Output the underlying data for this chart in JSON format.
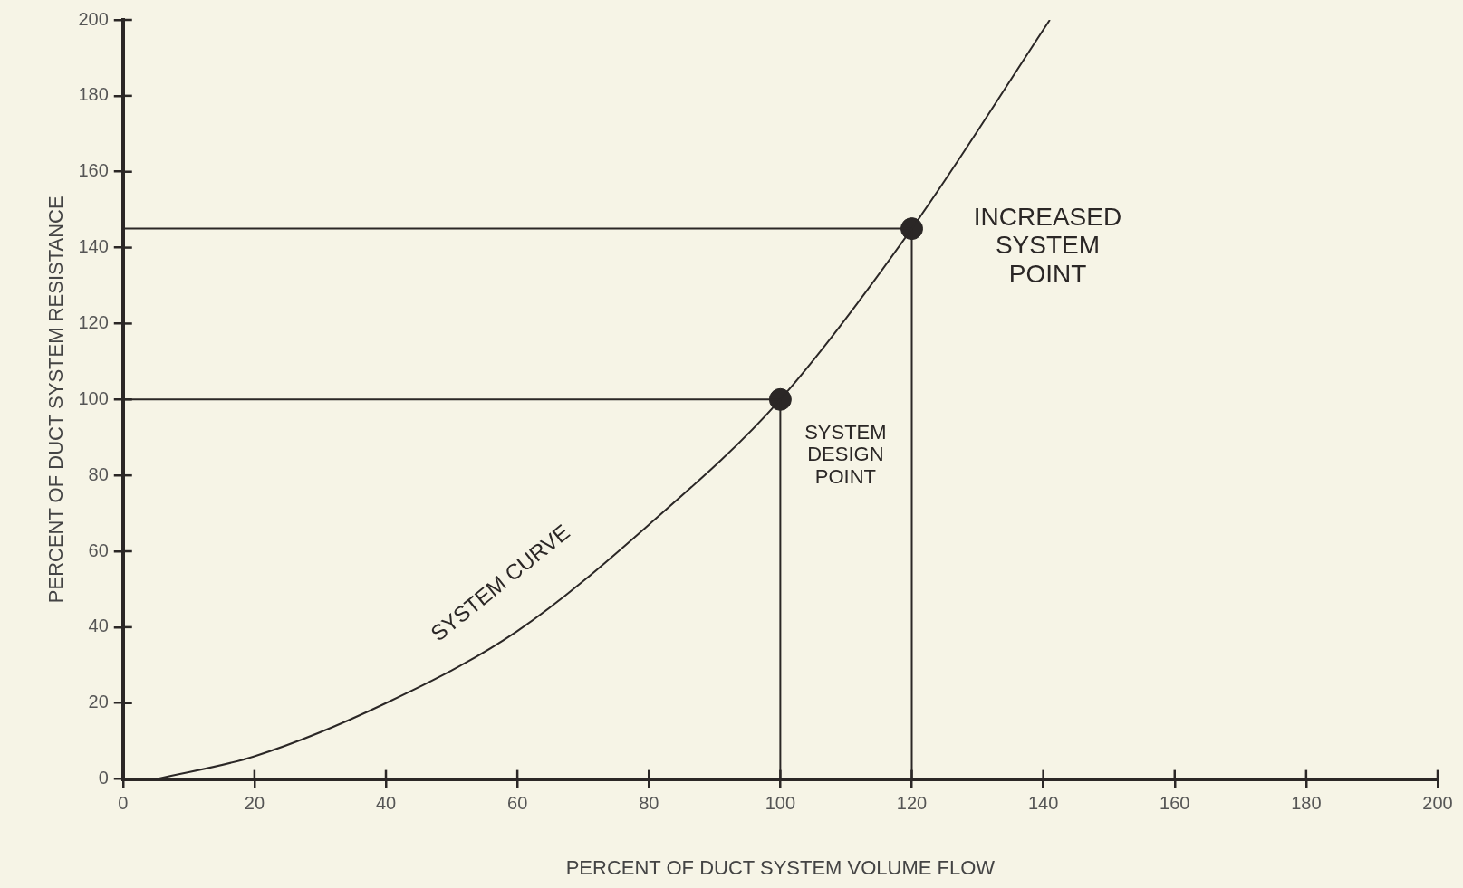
{
  "chart_data": {
    "type": "line",
    "xlabel": "PERCENT OF DUCT SYSTEM VOLUME FLOW",
    "ylabel": "PERCENT OF DUCT SYSTEM RESISTANCE",
    "xlim": [
      0,
      200
    ],
    "ylim": [
      0,
      200
    ],
    "xticks": [
      0,
      20,
      40,
      60,
      80,
      100,
      120,
      140,
      160,
      180,
      200
    ],
    "yticks": [
      0,
      20,
      40,
      60,
      80,
      100,
      120,
      140,
      160,
      180,
      200
    ],
    "grid": false,
    "legend": false,
    "marker": "none",
    "line_style": "solid",
    "series": [
      {
        "color": "#2b2726",
        "x": [
          5,
          20,
          40,
          60,
          80,
          100,
          120,
          141
        ],
        "values": [
          0,
          6,
          20,
          39,
          67,
          100,
          145,
          200
        ]
      },
      {
        "color": "#2b2726",
        "x": [
          0,
          100,
          100
        ],
        "values": [
          100,
          100,
          0
        ]
      },
      {
        "color": "#2b2726",
        "x": [
          0,
          120,
          120
        ],
        "values": [
          145,
          145,
          0
        ]
      },
      {
        "type": "scatter",
        "color": "#2b2726",
        "marker": "circle",
        "x": [
          100,
          120
        ],
        "values": [
          100,
          145
        ]
      }
    ],
    "annotations": [
      {
        "text": "SYSTEM CURVE",
        "x": 60,
        "y": 39
      },
      {
        "text": "SYSTEM\nDESIGN\nPOINT",
        "x": 100,
        "y": 100
      },
      {
        "text": "INCREASED\nSYSTEM\nPOINT",
        "x": 120,
        "y": 145
      }
    ]
  }
}
